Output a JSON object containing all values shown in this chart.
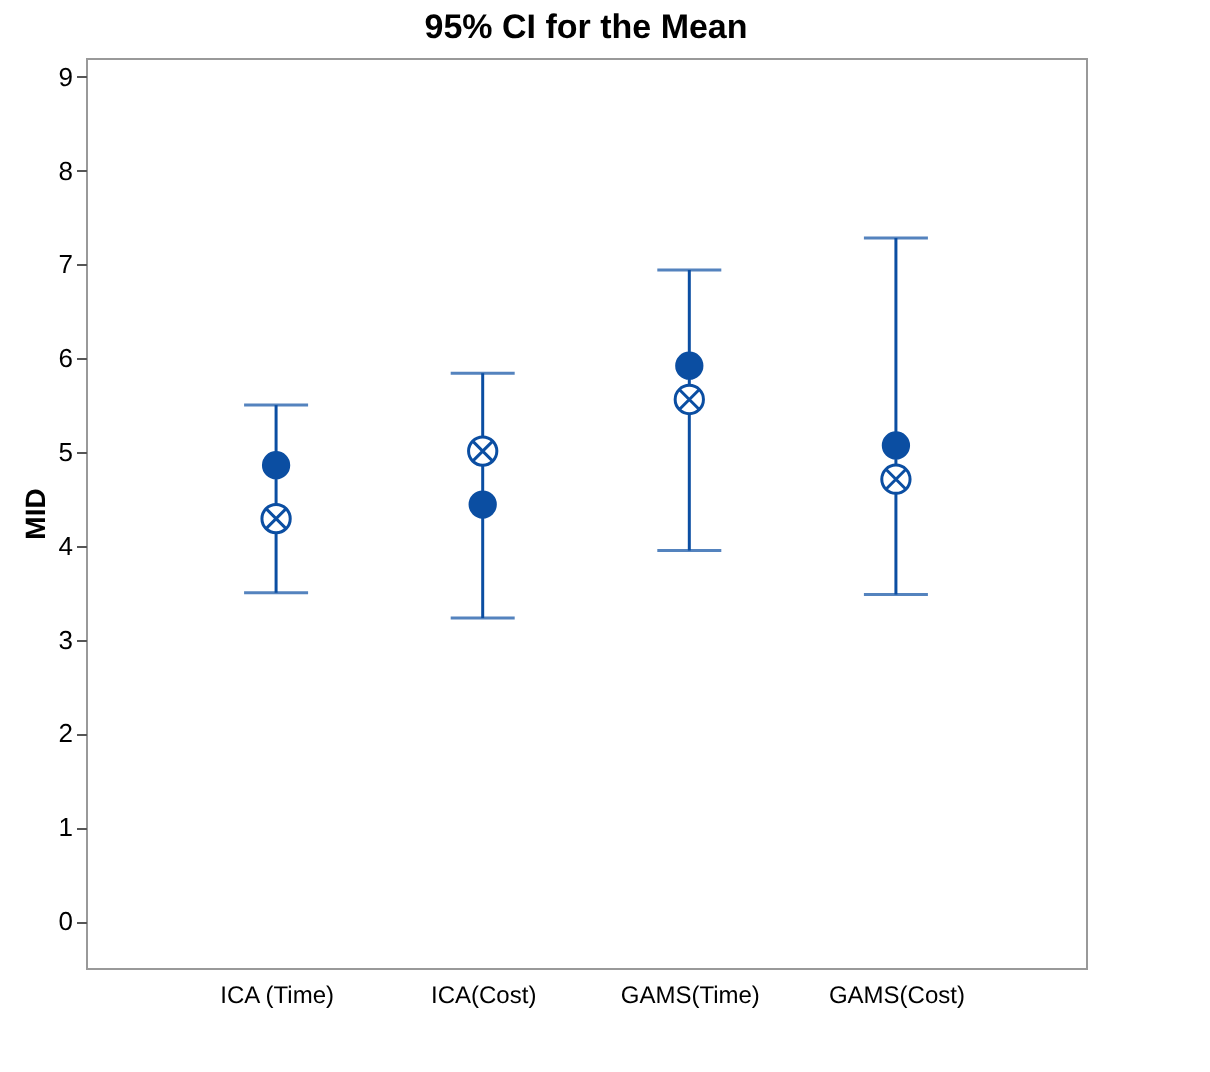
{
  "chart_data": {
    "type": "scatter",
    "title": "95% CI for the Mean",
    "ylabel": "MID",
    "categories": [
      "ICA (Time)",
      "ICA(Cost)",
      "GAMS(Time)",
      "GAMS(Cost)"
    ],
    "series": [
      {
        "color": "#0b4ea2",
        "marker": "circle",
        "values": [
          4.86,
          4.44,
          5.92,
          5.07
        ],
        "errors": [
          [
            3.5,
            5.5
          ],
          [
            3.23,
            5.84
          ],
          [
            3.95,
            6.94
          ],
          [
            3.48,
            7.28
          ]
        ]
      },
      {
        "color": "#0b4ea2",
        "marker": "cross",
        "values": [
          4.29,
          5.01,
          5.56,
          4.71
        ]
      }
    ],
    "ylim": [
      -0.5,
      9.2
    ],
    "yticks": [
      0,
      1,
      2,
      3,
      4,
      5,
      6,
      7,
      8,
      9
    ],
    "grid": false
  }
}
